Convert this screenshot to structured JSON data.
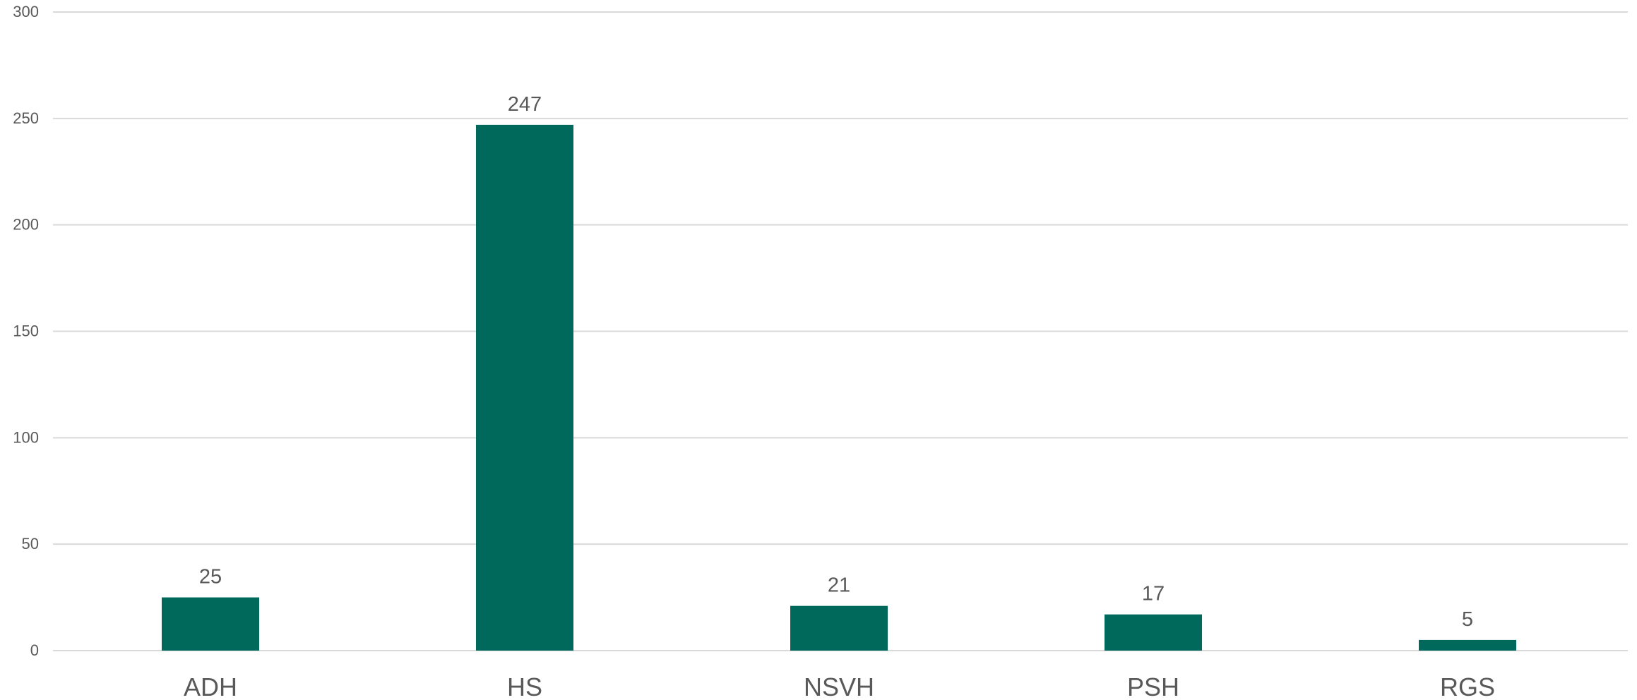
{
  "chart_data": {
    "type": "bar",
    "categories": [
      "ADH",
      "HS",
      "NSVH",
      "PSH",
      "RGS"
    ],
    "values": [
      25,
      247,
      21,
      17,
      5
    ],
    "data_labels": [
      "25",
      "247",
      "21",
      "17",
      "5"
    ],
    "ylim": [
      0,
      300
    ],
    "yticks": [
      0,
      50,
      100,
      150,
      200,
      250,
      300
    ],
    "ytick_labels": [
      "0",
      "50",
      "100",
      "150",
      "200",
      "250",
      "300"
    ],
    "grid": true,
    "legend": "none",
    "bar_color": "#00695C"
  }
}
